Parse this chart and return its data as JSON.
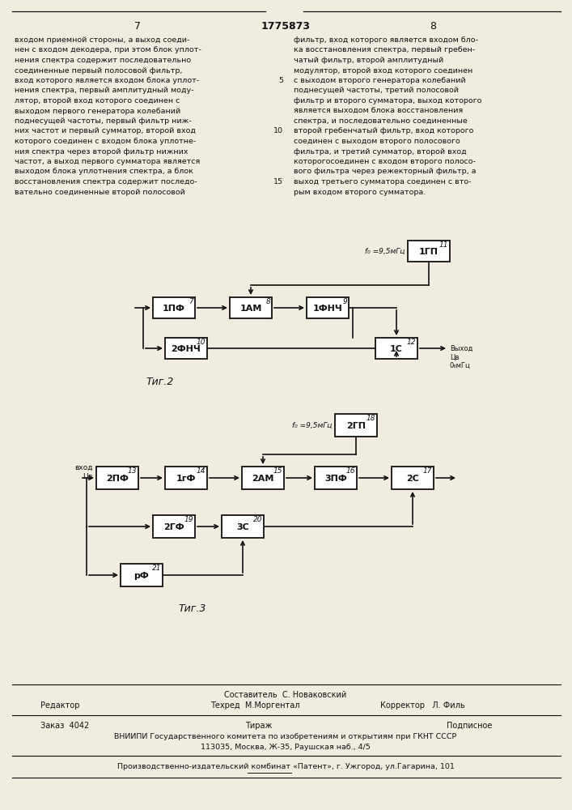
{
  "page_numbers": [
    "7",
    "1775873",
    "8"
  ],
  "fig2_label": "Τиг.2",
  "fig3_label": "Τиг.3",
  "fig2": {
    "gp1_label": "1ГП",
    "gp1_num": "11",
    "f0_label": "f₀ =9,5мГц",
    "pf1_label": "1ПФ",
    "pf1_num": "7",
    "am1_label": "1АМ",
    "am1_num": "8",
    "fnch1_label": "1ФНЧ",
    "fnch1_num": "9",
    "fnch2_label": "2ФНЧ",
    "fnch2_num": "10",
    "s1_label": "1С",
    "s1_num": "12",
    "output_label": "Выход\nЦв\n0₆мГц"
  },
  "fig3": {
    "gp2_label": "2ГП",
    "gp2_num": "18",
    "f0_label": "f₀ =9,5мГц",
    "input_label": "вход\nЦв",
    "pf2_label": "2ПФ",
    "pf2_num": "13",
    "gf1_label": "1гФ",
    "gf1_num": "14",
    "am2_label": "2АМ",
    "am2_num": "15",
    "pf3_label": "3ПФ",
    "pf3_num": "16",
    "s2_label": "2С",
    "s2_num": "17",
    "gf2_label": "2ГФ",
    "gf2_num": "19",
    "s3_label": "3С",
    "s3_num": "20",
    "rf_label": "рФ",
    "rf_num": "21"
  },
  "footer": {
    "editor": "Редактор",
    "composer": "Составитель  С. Новаковский",
    "techred": "Техред  М.Моргентал",
    "corrector": "Корректор   Л. Филь",
    "order": "Заказ  4042",
    "tirazh": "Тираж",
    "podpisnoe": "Подписное",
    "vniiipi": "ВНИИПИ Государственного комитета по изобретениям и открытиям при ГКНТ СССР",
    "address": "113035, Москва, Ж-35, Раушская наб., 4/5",
    "factory": "Производственно-издательский комбинат «Патент», г. Ужгород, ул.Гагарина, 101"
  },
  "bg_color": "#f0ece0",
  "box_color": "#111111",
  "text_color": "#111111",
  "left_text_lines": [
    "входом приемной стороны, а выход соеди-",
    "нен с входом декодера, при этом блок уплот-",
    "нения спектра содержит последовательно",
    "соединенные первый полосовой фильтр,",
    "вход которого является входом блока уплот-",
    "нения спектра, первый амплитудный моду-",
    "лятор, второй вход которого соединен с",
    "выходом первого генератора колебаний",
    "поднесущей частоты, первый фильтр ниж-",
    "них частот и первый сумматор, второй вход",
    "которого соединен с входом блока уплотне-",
    "ния спектра через второй фильтр нижних",
    "частот, а выход первого сумматора является",
    "выходом блока уплотнения спектра, а блок",
    "восстановления спектра содержит последо-",
    "вательно соединенные второй полосовой"
  ],
  "right_text_lines": [
    "фильтр, вход которого является входом бло-",
    "ка восстановления спектра, первый гребен-",
    "чатый фильтр, второй амплитудный",
    "модулятор, второй вход которого соединен",
    "с выходом второго генератора колебаний",
    "поднесущей частоты, третий полосовой",
    "фильтр и второго сумматора, выход которого",
    "является выходом блока восстановления",
    "спектра, и последовательно соединенные",
    "второй гребенчатый фильтр, вход которого",
    "соединен с выходом второго полосового",
    "фильтра, и третий сумматор, второй вход",
    "которогосоединен с входом второго полосо-",
    "вого фильтра через режекторный фильтр, а",
    "выход третьего сумматора соединен с вто-",
    "рым входом второго сумматора."
  ]
}
